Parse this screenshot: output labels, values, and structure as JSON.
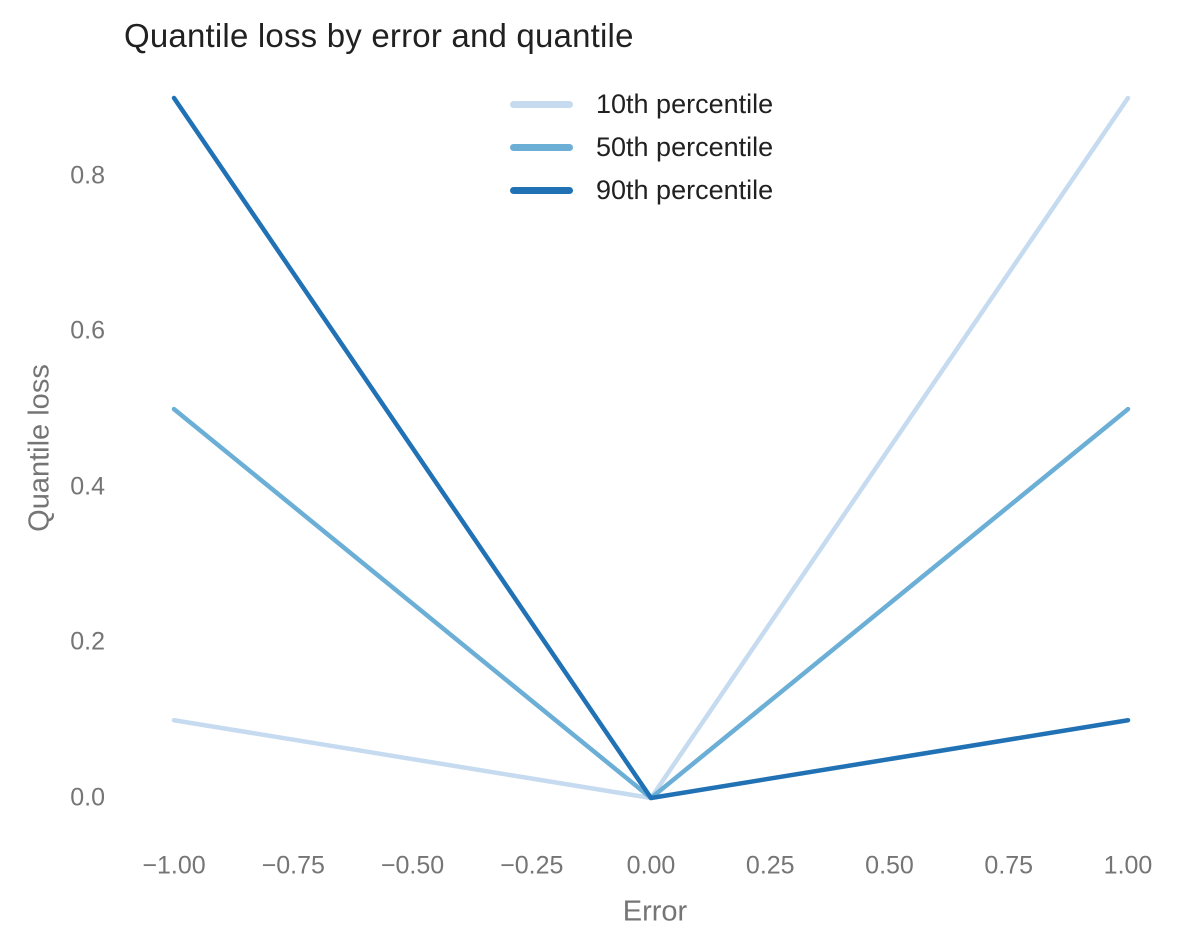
{
  "chart": {
    "title": "Quantile loss by error and quantile"
  },
  "chart_data": {
    "type": "line",
    "title": "Quantile loss by error and quantile",
    "xlabel": "Error",
    "ylabel": "Quantile loss",
    "x": [
      -1.0,
      0.0,
      1.0
    ],
    "series": [
      {
        "name": "10th percentile",
        "color": "#c6dbef",
        "values": [
          0.1,
          0.0,
          0.9
        ]
      },
      {
        "name": "50th percentile",
        "color": "#6baed6",
        "values": [
          0.5,
          0.0,
          0.5
        ]
      },
      {
        "name": "90th percentile",
        "color": "#2171b5",
        "values": [
          0.9,
          0.0,
          0.1
        ]
      }
    ],
    "xlim": [
      -1.0,
      1.0
    ],
    "ylim": [
      0.0,
      0.9
    ],
    "x_ticks": [
      -1.0,
      -0.75,
      -0.5,
      -0.25,
      0.0,
      0.25,
      0.5,
      0.75,
      1.0
    ],
    "x_tick_labels": [
      "−1.00",
      "−0.75",
      "−0.50",
      "−0.25",
      "0.00",
      "0.25",
      "0.50",
      "0.75",
      "1.00"
    ],
    "y_ticks": [
      0.0,
      0.2,
      0.4,
      0.6,
      0.8
    ],
    "y_tick_labels": [
      "0.0",
      "0.2",
      "0.4",
      "0.6",
      "0.8"
    ],
    "grid": false,
    "axis_lines": false,
    "legend_position": "top-center-inside",
    "background": "#ffffff"
  },
  "colors": {
    "title_text": "#212121",
    "axis_text": "#757575",
    "line_10th": "#c6dbef",
    "line_50th": "#6baed6",
    "line_90th": "#2171b5"
  }
}
